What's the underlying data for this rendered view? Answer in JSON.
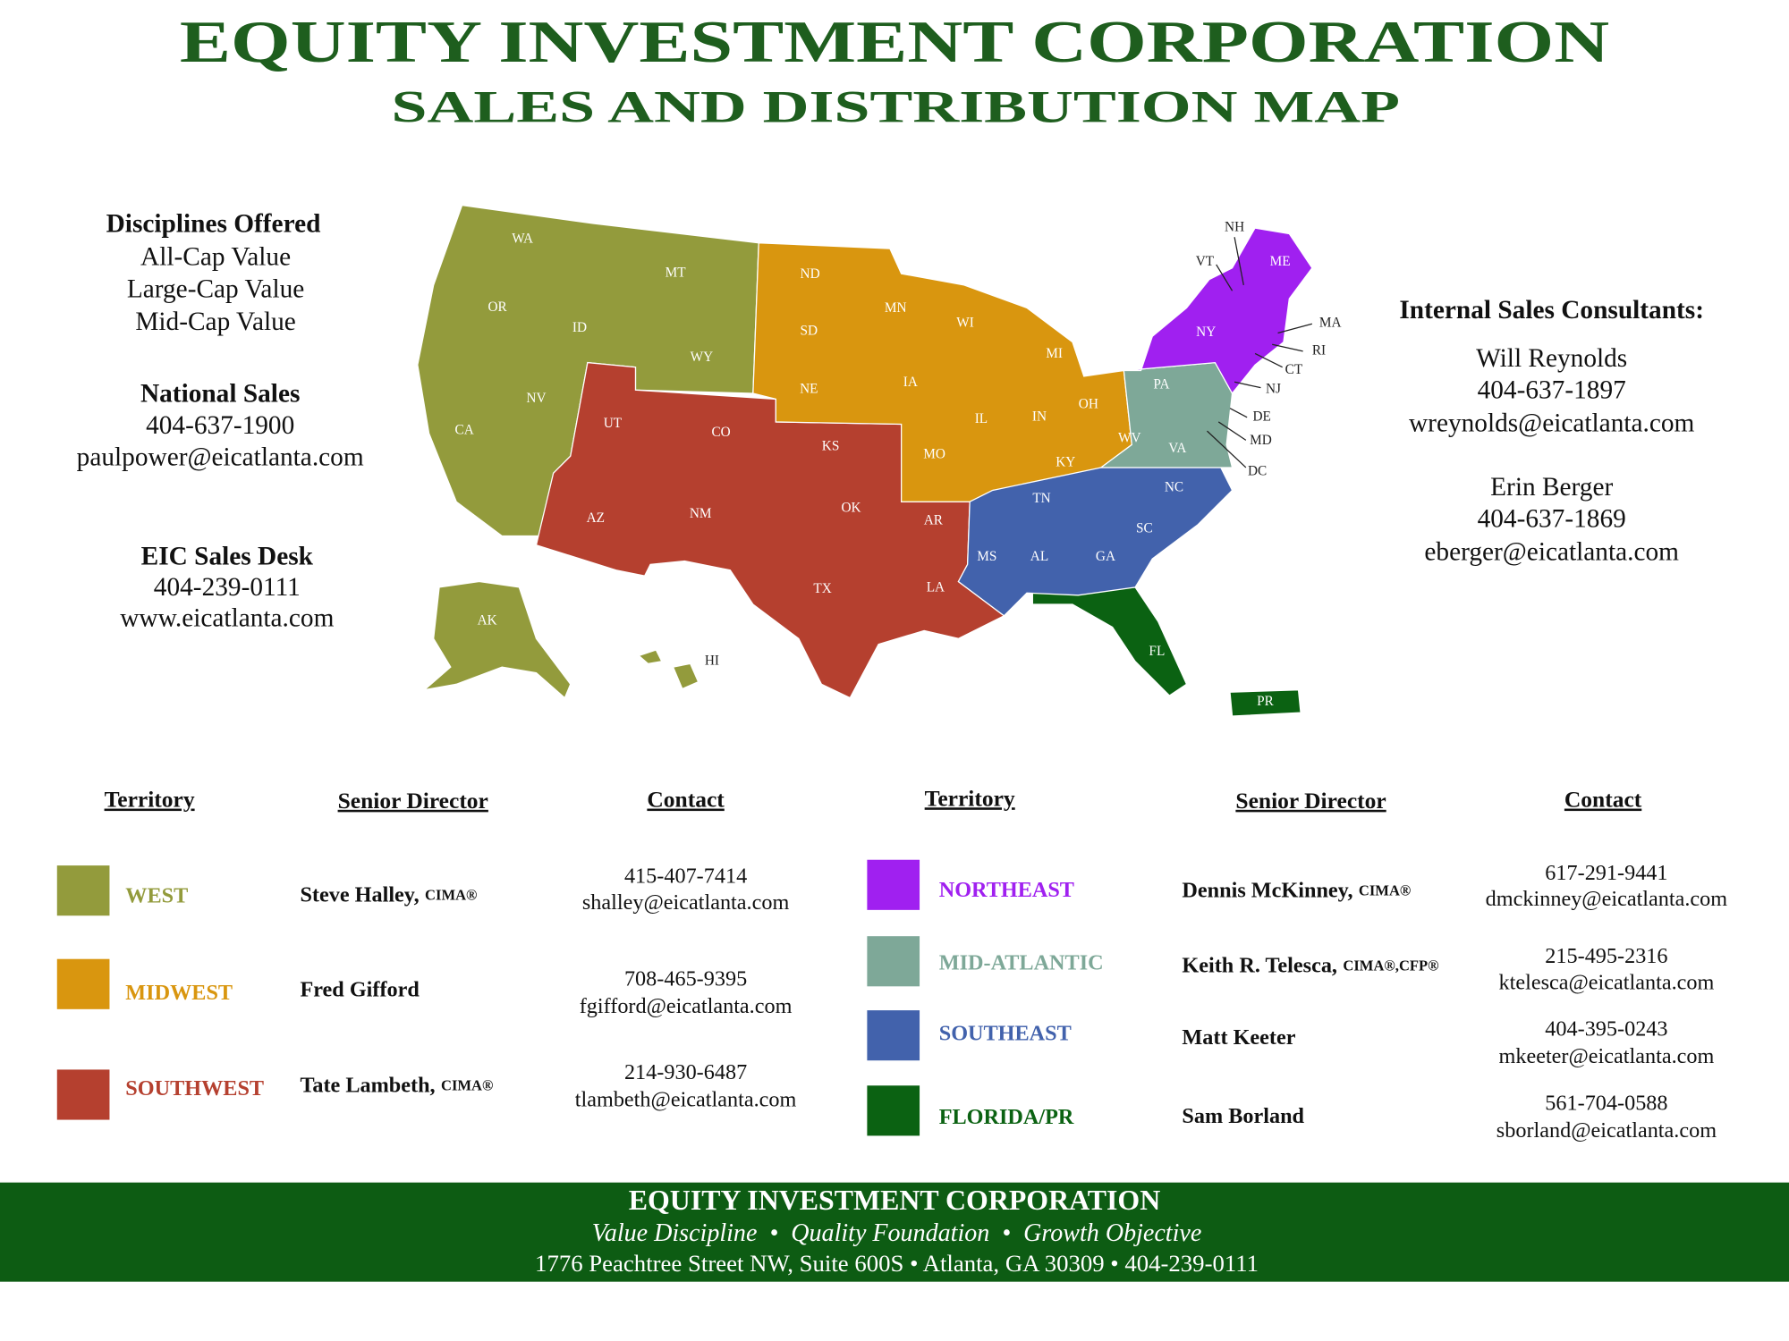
{
  "header": {
    "title": "EQUITY INVESTMENT CORPORATION",
    "subtitle": "SALES AND DISTRIBUTION MAP"
  },
  "left_panel": {
    "disciplines_heading": "Disciplines Offered",
    "disciplines": [
      "All-Cap Value",
      "Large-Cap Value",
      "Mid-Cap Value"
    ],
    "national_sales": {
      "heading": "National Sales",
      "phone": "404-637-1900",
      "email": "paulpower@eicatlanta.com"
    },
    "sales_desk": {
      "heading": "EIC Sales Desk",
      "phone": "404-239-0111",
      "website": "www.eicatlanta.com"
    }
  },
  "right_panel": {
    "heading": "Internal Sales Consultants:",
    "consultants": [
      {
        "name": "Will Reynolds",
        "phone": "404-637-1897",
        "email": "wreynolds@eicatlanta.com"
      },
      {
        "name": "Erin Berger",
        "phone": "404-637-1869",
        "email": "eberger@eicatlanta.com"
      }
    ]
  },
  "map": {
    "state_labels": [
      "WA",
      "OR",
      "CA",
      "NV",
      "ID",
      "MT",
      "WY",
      "AK",
      "HI",
      "UT",
      "CO",
      "AZ",
      "NM",
      "KS",
      "OK",
      "TX",
      "AR",
      "LA",
      "ND",
      "SD",
      "NE",
      "MN",
      "IA",
      "WI",
      "IL",
      "MI",
      "IN",
      "OH",
      "MO",
      "KY",
      "TN",
      "MS",
      "AL",
      "GA",
      "SC",
      "NC",
      "FL",
      "PR",
      "PA",
      "WV",
      "VA",
      "DE",
      "MD",
      "DC",
      "NJ",
      "NH",
      "VT",
      "ME",
      "NY",
      "MA",
      "RI",
      "CT"
    ]
  },
  "legend": {
    "headers": [
      "Territory",
      "Senior Director",
      "Contact",
      "Territory",
      "Senior Director",
      "Contact"
    ],
    "rows": [
      {
        "territory": "WEST",
        "color": "#939b3c",
        "director": "Steve Halley,",
        "credential": "CIMA®",
        "phone": "415-407-7414",
        "email": "shalley@eicatlanta.com"
      },
      {
        "territory": "MIDWEST",
        "color": "#d9960f",
        "director": "Fred Gifford",
        "phone": "708-465-9395",
        "email": "fgifford@eicatlanta.com"
      },
      {
        "territory": "SOUTHWEST",
        "color": "#b5402f",
        "director": "Tate Lambeth,",
        "credential": "CIMA®",
        "phone": "214-930-6487",
        "email": "tlambeth@eicatlanta.com"
      },
      {
        "territory": "NORTHEAST",
        "color": "#a020f0",
        "director": "Dennis McKinney,",
        "credential": "CIMA®",
        "phone": "617-291-9441",
        "email": "dmckinney@eicatlanta.com"
      },
      {
        "territory": "MID-ATLANTIC",
        "color": "#7ea898",
        "director": "Keith R. Telesca,",
        "credential": "CIMA®,CFP®",
        "phone": "215-495-2316",
        "email": "ktelesca@eicatlanta.com"
      },
      {
        "territory": "SOUTHEAST",
        "color": "#4262ac",
        "director": "Matt Keeter",
        "phone": "404-395-0243",
        "email": "mkeeter@eicatlanta.com"
      },
      {
        "territory": "FLORIDA/PR",
        "color": "#0b6212",
        "director": "Sam Borland",
        "phone": "561-704-0588",
        "email": "sborland@eicatlanta.com"
      }
    ]
  },
  "footer": {
    "title": "EQUITY INVESTMENT CORPORATION",
    "tagline": "Value Discipline  •  Quality Foundation  •  Growth Objective",
    "address": "1776 Peachtree Street NW, Suite 600S • Atlanta, GA 30309 • 404-239-0111"
  }
}
